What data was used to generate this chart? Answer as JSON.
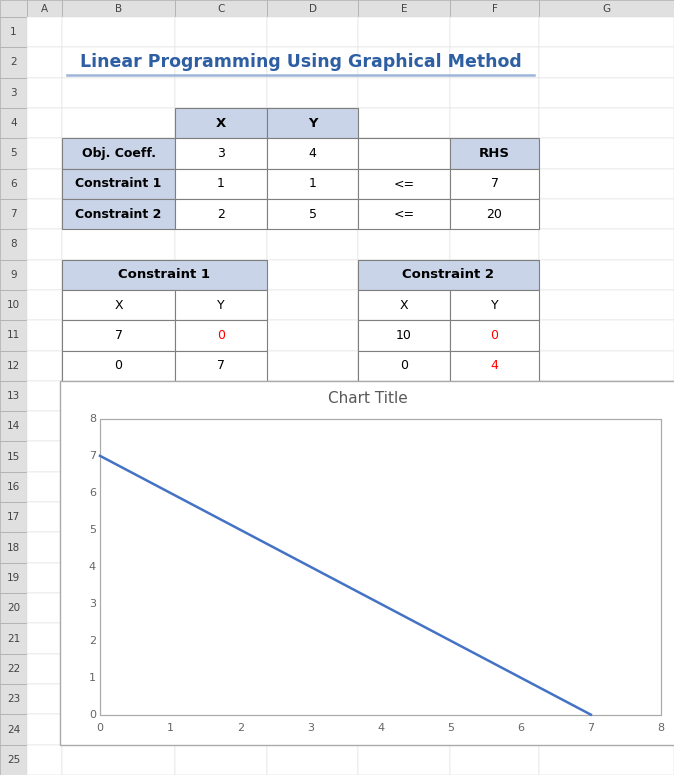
{
  "title": "Linear Programming Using Graphical Method",
  "title_color": "#2E5FA3",
  "header_bg": "#C9D4E8",
  "chart_title": "Chart Title",
  "chart_title_color": "#595959",
  "line_x": [
    0,
    7
  ],
  "line_y": [
    7,
    0
  ],
  "xlim": [
    0,
    8
  ],
  "ylim": [
    0,
    8
  ],
  "xticks": [
    0,
    1,
    2,
    3,
    4,
    5,
    6,
    7,
    8
  ],
  "yticks": [
    0,
    1,
    2,
    3,
    4,
    5,
    6,
    7,
    8
  ],
  "line_color": "#4472C4",
  "grid_color": "#D9D9D9",
  "spreadsheet_header_bg": "#E0E0E0",
  "spreadsheet_cell_bg": "#FFFFFF",
  "cell_border_color": "#C0C0C0",
  "thick_border_color": "#808080"
}
